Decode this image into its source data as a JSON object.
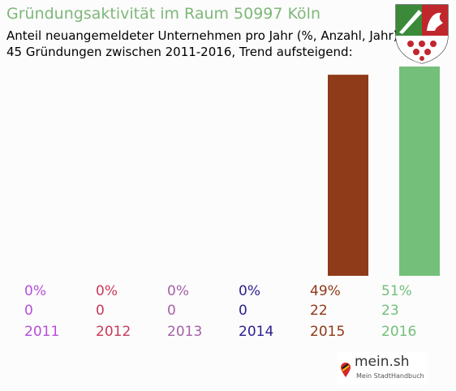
{
  "header": {
    "title": "Gründungsaktivität im Raum 50997 Köln",
    "subtitle_line1": "Anteil neuangemeldeter Unternehmen pro Jahr (%, Anzahl, Jahr)",
    "subtitle_line2": "45 Gründungen zwischen 2011-2016, Trend aufsteigend:"
  },
  "logo": {
    "icon": "nrw-coat-of-arms-icon",
    "colors": {
      "green": "#3a8a3a",
      "white": "#ffffff",
      "red": "#c0272d"
    }
  },
  "brand": {
    "name": "mein.sh",
    "tagline": "Mein StadtHandbuch",
    "icon": "map-pin-icon"
  },
  "chart_data": {
    "type": "bar",
    "categories": [
      "2011",
      "2012",
      "2013",
      "2014",
      "2015",
      "2016"
    ],
    "values": [
      0,
      0,
      0,
      0,
      49,
      51
    ],
    "percent_labels": [
      "0%",
      "0%",
      "0%",
      "0%",
      "49%",
      "51%"
    ],
    "counts": [
      0,
      0,
      0,
      0,
      22,
      23
    ],
    "colors": [
      "#b44fd8",
      "#c93a5a",
      "#a561a8",
      "#2a1f8f",
      "#8f3a18",
      "#74bf7a"
    ],
    "ylim": [
      0,
      51
    ],
    "grid": false
  }
}
